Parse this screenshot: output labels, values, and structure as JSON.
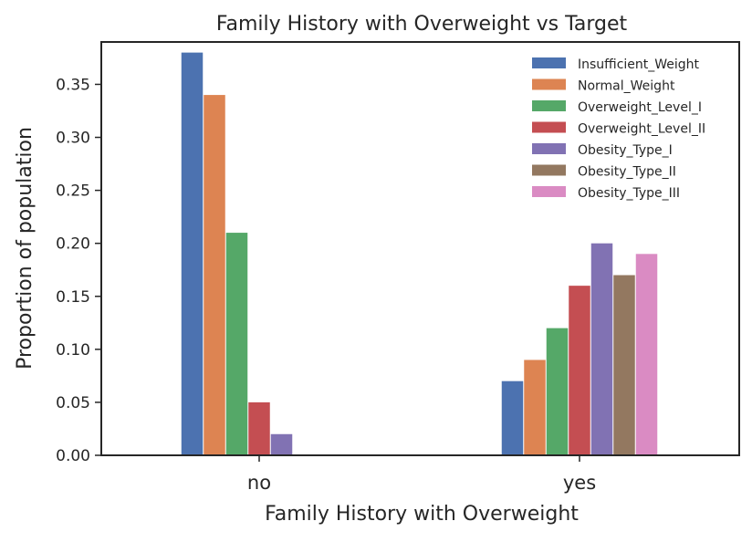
{
  "chart_data": {
    "type": "bar",
    "title": "Family History with Overweight vs Target",
    "xlabel": "Family History with Overweight",
    "ylabel": "Proportion of population",
    "categories": [
      "no",
      "yes"
    ],
    "ylim": [
      0,
      0.39
    ],
    "yticks": [
      "0.00",
      "0.05",
      "0.10",
      "0.15",
      "0.20",
      "0.25",
      "0.30",
      "0.35"
    ],
    "grid": false,
    "legend_position": "top-right",
    "series": [
      {
        "name": "Insufficient_Weight",
        "color": "#4C72B0",
        "values": [
          0.38,
          0.07
        ]
      },
      {
        "name": "Normal_Weight",
        "color": "#DD8452",
        "values": [
          0.34,
          0.09
        ]
      },
      {
        "name": "Overweight_Level_I",
        "color": "#55A868",
        "values": [
          0.21,
          0.12
        ]
      },
      {
        "name": "Overweight_Level_II",
        "color": "#C44E52",
        "values": [
          0.05,
          0.16
        ]
      },
      {
        "name": "Obesity_Type_I",
        "color": "#8172B3",
        "values": [
          0.02,
          0.2
        ]
      },
      {
        "name": "Obesity_Type_II",
        "color": "#937860",
        "values": [
          0.0,
          0.17
        ]
      },
      {
        "name": "Obesity_Type_III",
        "color": "#DA8BC3",
        "values": [
          0.0,
          0.19
        ]
      }
    ]
  }
}
